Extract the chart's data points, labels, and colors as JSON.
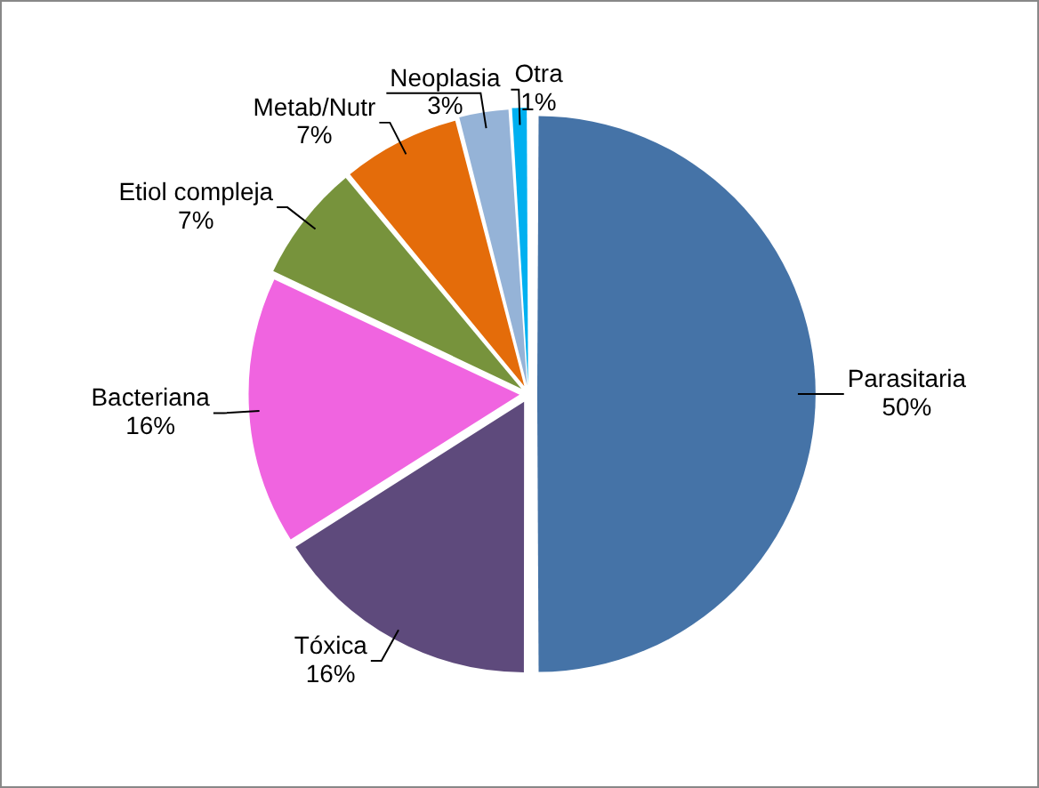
{
  "chart_data": {
    "type": "pie",
    "categories": [
      "Parasitaria",
      "Tóxica",
      "Bacteriana",
      "Etiol compleja",
      "Metab/Nutr",
      "Neoplasia",
      "Otra"
    ],
    "values": [
      50,
      16,
      16,
      7,
      7,
      3,
      1
    ],
    "value_labels": [
      "50%",
      "16%",
      "16%",
      "7%",
      "7%",
      "3%",
      "1%"
    ],
    "colors": [
      "#4573a7",
      "#5e4a7c",
      "#f064e0",
      "#77933c",
      "#e46c0a",
      "#95b3d7",
      "#00b0f0"
    ],
    "legend": false
  }
}
